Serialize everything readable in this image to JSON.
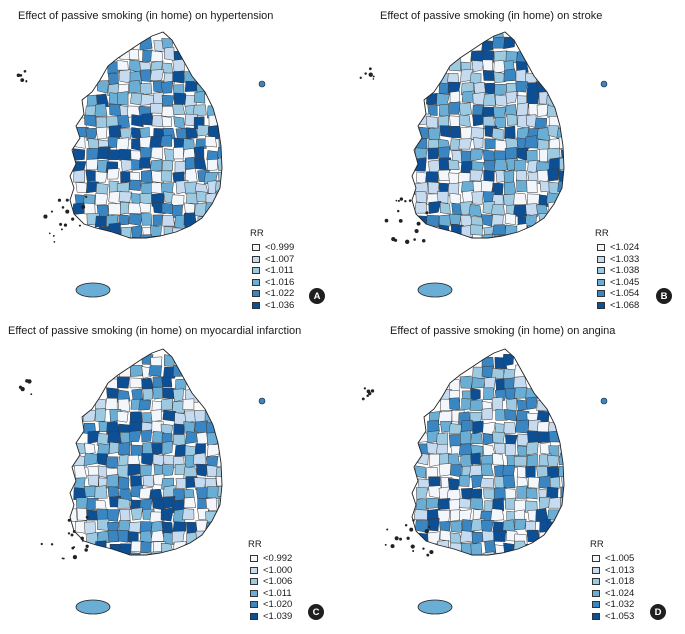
{
  "panels": [
    {
      "letter": "A",
      "title": "Effect of passive smoking (in home) on hypertension",
      "legend_title": "RR",
      "classes": [
        "<0.999",
        "<1.007",
        "<1.011",
        "<1.016",
        "<1.022",
        "<1.036"
      ]
    },
    {
      "letter": "B",
      "title": "Effect of passive smoking (in home) on stroke",
      "legend_title": "RR",
      "classes": [
        "<1.024",
        "<1.033",
        "<1.038",
        "<1.045",
        "<1.054",
        "<1.068"
      ]
    },
    {
      "letter": "C",
      "title": "Effect of passive smoking (in home) on myocardial infarction",
      "legend_title": "RR",
      "classes": [
        "<0.992",
        "<1.000",
        "<1.006",
        "<1.011",
        "<1.020",
        "<1.039"
      ]
    },
    {
      "letter": "D",
      "title": "Effect of passive smoking (in home) on angina",
      "legend_title": "RR",
      "classes": [
        "<1.005",
        "<1.013",
        "<1.018",
        "<1.024",
        "<1.032",
        "<1.053"
      ]
    }
  ],
  "palette": [
    "#f3f7fc",
    "#c6dbef",
    "#9ecae1",
    "#6aaed6",
    "#3a86c2",
    "#0d4f94"
  ]
}
